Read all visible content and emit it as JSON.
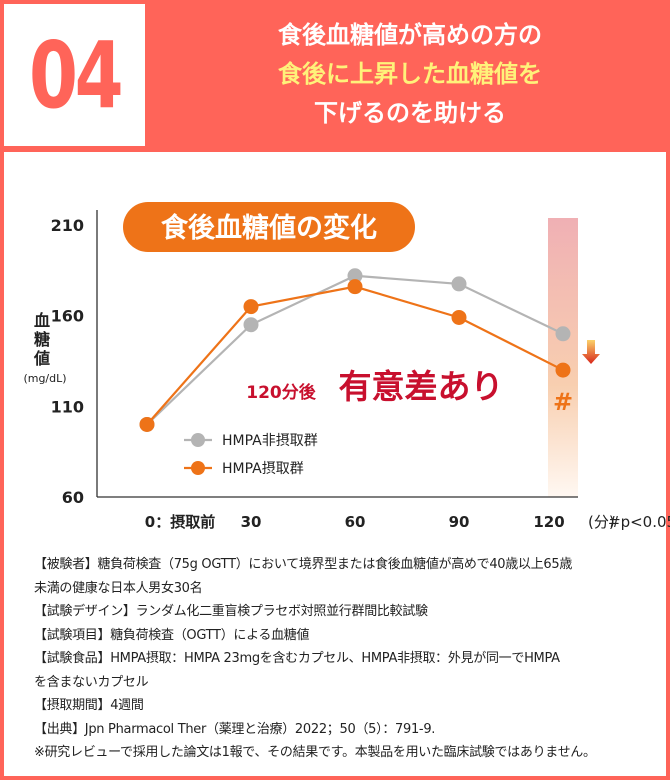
{
  "header": {
    "number": "04",
    "title_line1": "食後血糖値が高めの方の",
    "title_line2": "食後に上昇した血糖値を",
    "title_line3": "下げるのを助ける"
  },
  "chart_data": {
    "type": "line",
    "title": "食後血糖値の変化",
    "ylabel": "血糖値",
    "yunit": "(mg/dL)",
    "ylim": [
      60,
      210
    ],
    "yticks": [
      "210",
      "160",
      "110",
      "60"
    ],
    "x": [
      0,
      30,
      60,
      90,
      120
    ],
    "xtick_labels": [
      "0：摂取前",
      "30",
      "60",
      "90",
      "120"
    ],
    "xunit": "(分)",
    "footnote": "#p<0.05",
    "series": [
      {
        "name": "HMPA非摂取群",
        "color": "#b4b4b4",
        "values": [
          100,
          155,
          182,
          177.5,
          150
        ]
      },
      {
        "name": "HMPA摂取群",
        "color": "#ee7318",
        "values": [
          100,
          165,
          176,
          159,
          130
        ]
      }
    ],
    "annotation_prefix": "120分後",
    "annotation_main": "有意差あり",
    "significance_mark": "#",
    "colors": {
      "accent": "#ee7318",
      "significance": "#c8102e",
      "band": "#f0b0b4"
    }
  },
  "notes": [
    "【被験者】糖負荷検査（75g OGTT）において境界型または食後血糖値が高めで40歳以上65歳",
    "未満の健康な日本人男女30名",
    "【試験デザイン】ランダム化二重盲検プラセボ対照並行群間比較試験",
    "【試験項目】糖負荷検査（OGTT）による血糖値",
    "【試験食品】HMPA摂取：HMPA 23mgを含むカプセル、HMPA非摂取：外見が同一でHMPA",
    "を含まないカプセル",
    "【摂取期間】4週間",
    "【出典】Jpn Pharmacol Ther（薬理と治療）2022；50（5）：791-9.",
    "※研究レビューで採用した論文は1報で、その結果です。本製品を用いた臨床試験ではありません。"
  ]
}
